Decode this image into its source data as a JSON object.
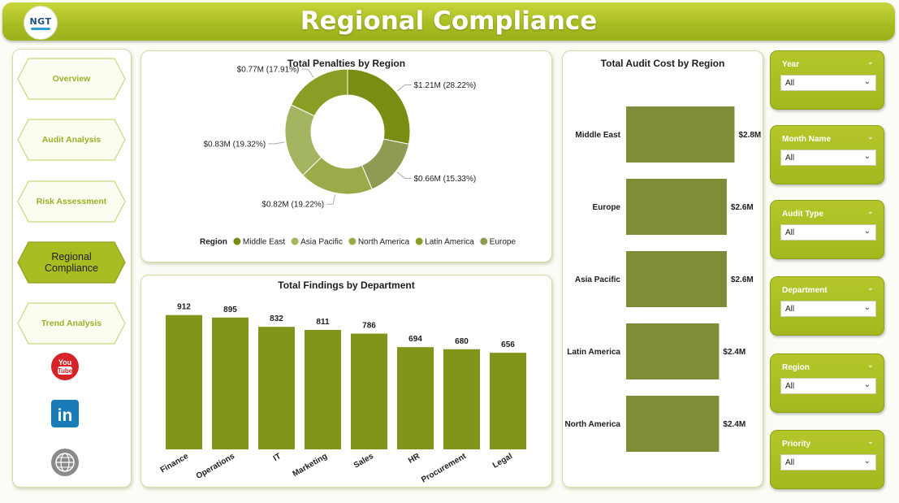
{
  "header": {
    "title": "Regional Compliance",
    "logo_text": "NGT"
  },
  "nav": {
    "items": [
      {
        "label": "Overview",
        "active": false
      },
      {
        "label": "Audit Analysis",
        "active": false
      },
      {
        "label": "Risk Assessment",
        "active": false
      },
      {
        "label": "Regional Compliance",
        "active": true
      },
      {
        "label": "Trend Analysis",
        "active": false
      }
    ],
    "social": [
      "youtube-icon",
      "linkedin-icon",
      "globe-icon"
    ]
  },
  "slicers": [
    {
      "label": "Year",
      "value": "All"
    },
    {
      "label": "Month Name",
      "value": "All"
    },
    {
      "label": "Audit Type",
      "value": "All"
    },
    {
      "label": "Department",
      "value": "All"
    },
    {
      "label": "Region",
      "value": "All"
    },
    {
      "label": "Priority",
      "value": "All"
    }
  ],
  "colors": {
    "accent": "#a9bd22",
    "bar_findings": "#7f961a",
    "bar_audit": "#808c38",
    "pie": [
      "#7b8c12",
      "#a3b560",
      "#9bab4a",
      "#899e24",
      "#8f9a52"
    ]
  },
  "chart_data": [
    {
      "type": "pie",
      "title": "Total Penalties by Region",
      "legend_title": "Region",
      "legend_position": "bottom",
      "categories": [
        "Middle East",
        "Asia Pacific",
        "North America",
        "Latin America",
        "Europe"
      ],
      "values": [
        1.21,
        0.83,
        0.82,
        0.77,
        0.66
      ],
      "unit": "$M",
      "data_labels": [
        "$1.21M (28.22%)",
        "$0.83M (19.32%)",
        "$0.82M (19.22%)",
        "$0.77M (17.91%)",
        "$0.66M (15.33%)"
      ],
      "slice_order": [
        "Middle East",
        "Europe",
        "North America",
        "Asia Pacific",
        "Latin America"
      ]
    },
    {
      "type": "bar",
      "title": "Total Findings by Department",
      "categories": [
        "Finance",
        "Operations",
        "IT",
        "Marketing",
        "Sales",
        "HR",
        "Procurement",
        "Legal"
      ],
      "values": [
        912,
        895,
        832,
        811,
        786,
        694,
        680,
        656
      ],
      "ylim": [
        0,
        960
      ]
    },
    {
      "type": "bar",
      "orientation": "horizontal",
      "title": "Total Audit Cost by Region",
      "categories": [
        "Middle East",
        "Europe",
        "Asia Pacific",
        "Latin America",
        "North America"
      ],
      "values": [
        2.8,
        2.6,
        2.6,
        2.4,
        2.4
      ],
      "data_labels": [
        "$2.8M",
        "$2.6M",
        "$2.6M",
        "$2.4M",
        "$2.4M"
      ],
      "xlim": [
        0,
        3.0
      ]
    }
  ]
}
